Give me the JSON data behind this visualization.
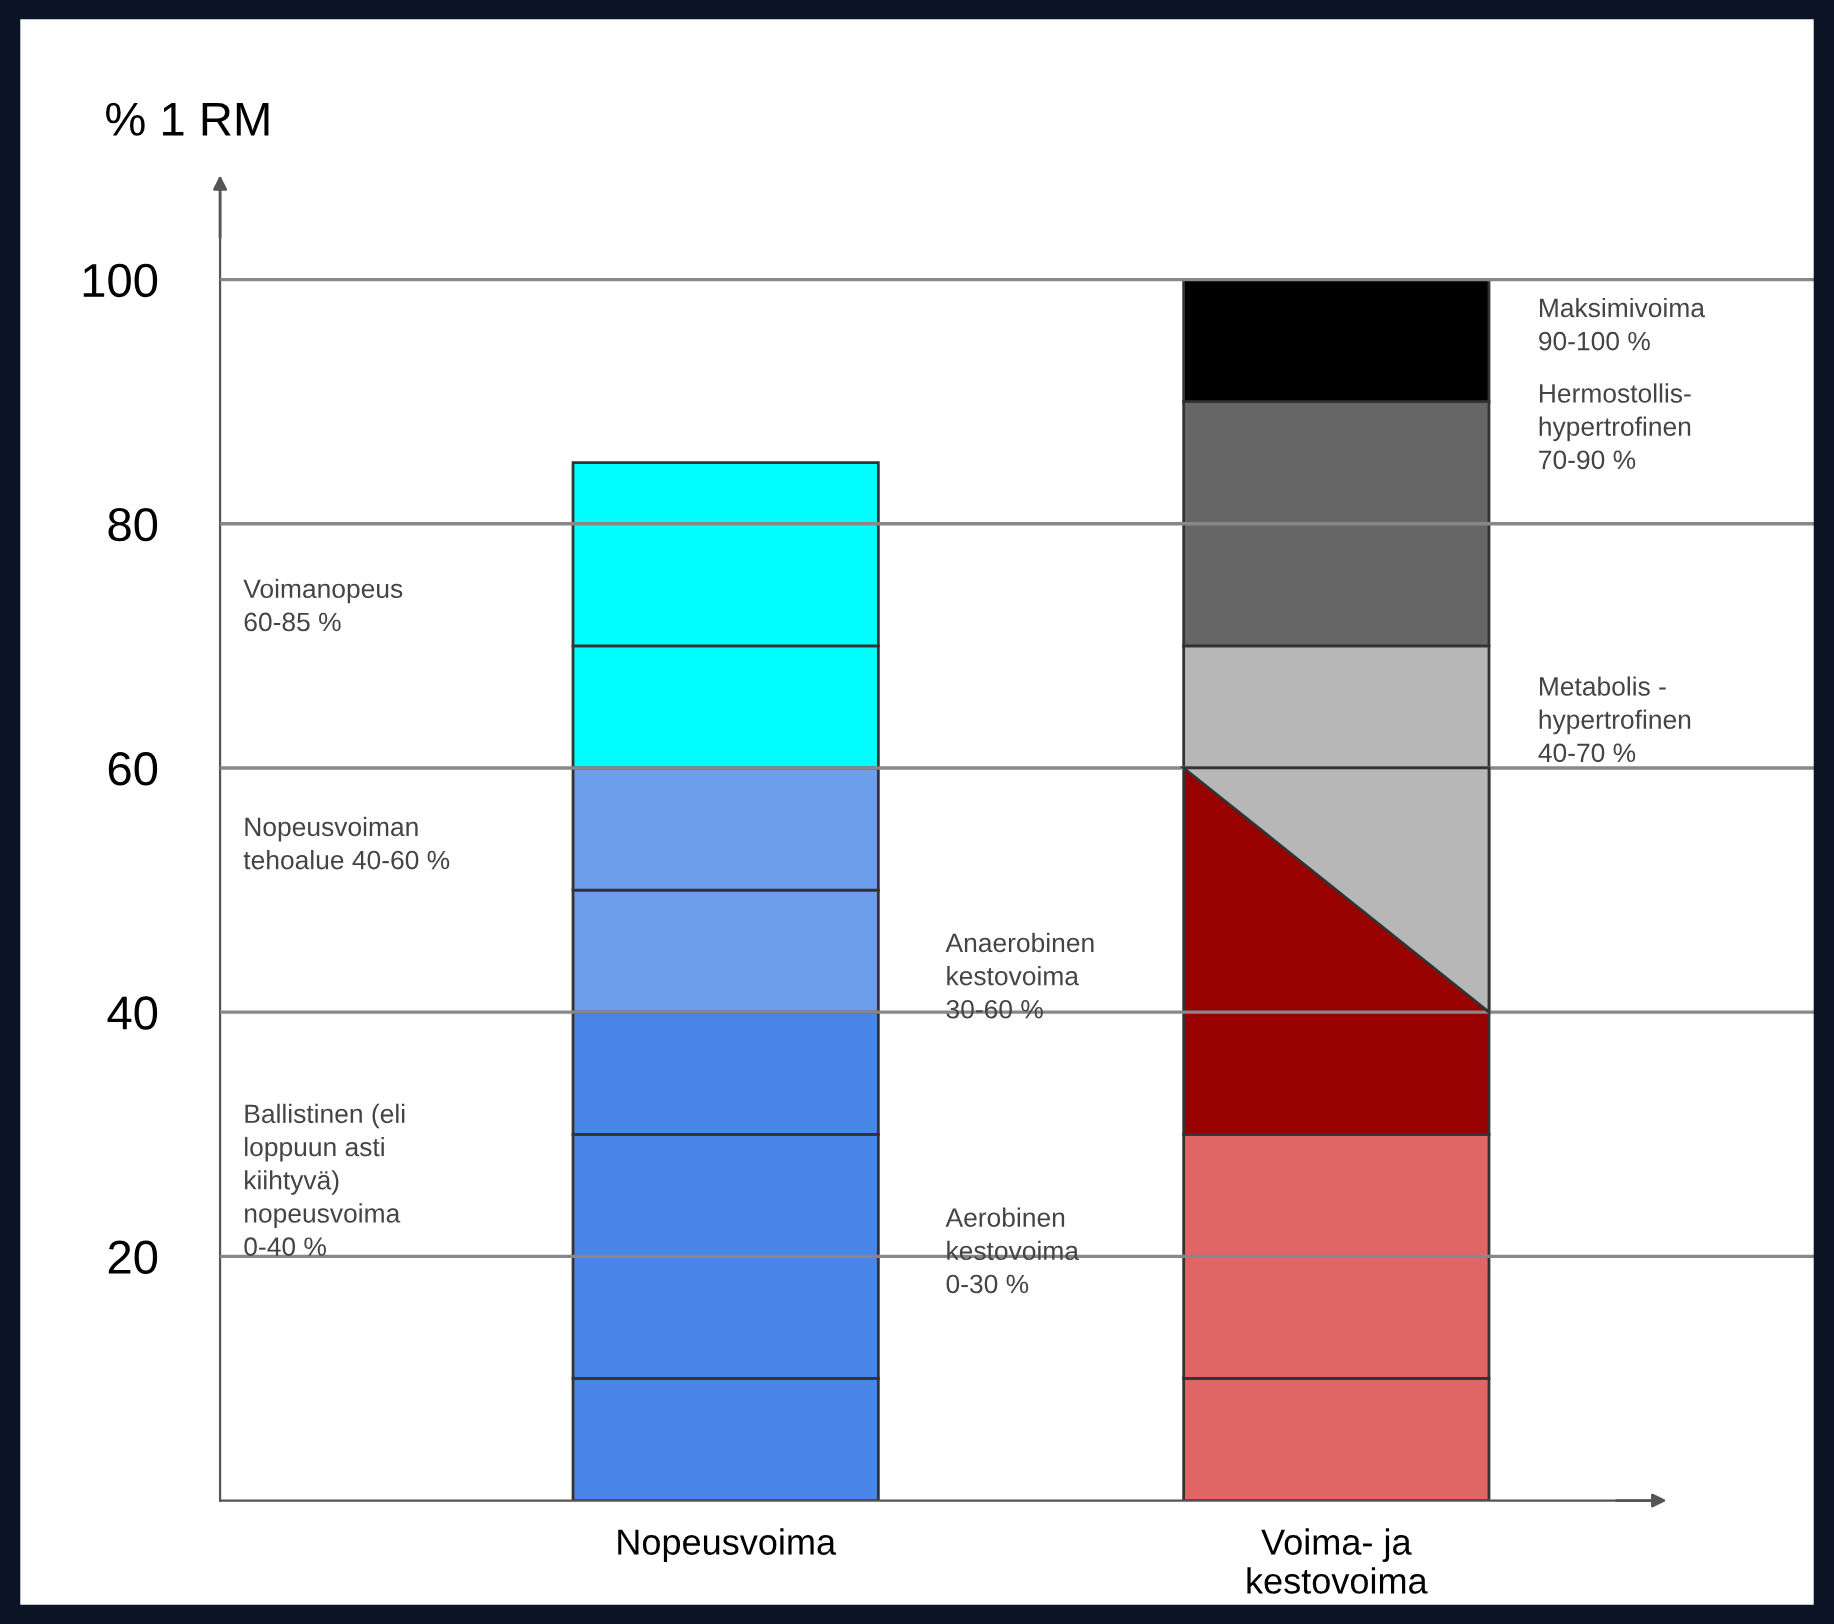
{
  "chart_data": {
    "type": "bar",
    "stacked": true,
    "ylabel": "% 1 RM",
    "categories": [
      "Nopeusvoima",
      "Voima- ja\nkestovoima"
    ],
    "series": [
      {
        "colors": [
          "#4a86e8",
          "#e06666"
        ],
        "values": [
          10,
          10
        ]
      },
      {
        "colors": [
          "#4a86e8",
          "#e06666"
        ],
        "values": [
          10,
          10
        ]
      },
      {
        "colors": [
          "#4a86e8",
          "#e06666"
        ],
        "values": [
          10,
          10
        ]
      },
      {
        "colors": [
          "#4a86e8",
          "#990000"
        ],
        "values": [
          10,
          10
        ]
      },
      {
        "colors": [
          "#6d9eeb",
          "#990000"
        ],
        "values": [
          10,
          20
        ]
      },
      {
        "colors": [
          "#6d9eeb",
          "#b7b7b7"
        ],
        "values": [
          10,
          10
        ]
      },
      {
        "colors": [
          "#00ffff",
          "#666666"
        ],
        "values": [
          10,
          20
        ]
      },
      {
        "colors": [
          "#00ffff",
          "#000000"
        ],
        "values": [
          15,
          10
        ]
      }
    ],
    "ylim": [
      0,
      108
    ],
    "yticks": [
      20,
      40,
      60,
      80,
      100
    ],
    "grid": "y",
    "annotations": [
      "Voimanopeus\n60-85 %",
      "Nopeusvoiman\ntehoalue 40-60 %",
      "Ballistinen (eli\nloppuun asti\nkiihtyvä)\nnopeusvoima\n0-40 %",
      "Anaerobinen\nkestovoima\n30-60 %",
      "Aerobinen\nkestovoima\n0-30 %",
      "Maksimivoima\n90-100 %",
      "Hermostollis-\nhypertrofinen\n70-90 %",
      "Metabolis -\nhypertrofinen\n40-70 %"
    ]
  }
}
